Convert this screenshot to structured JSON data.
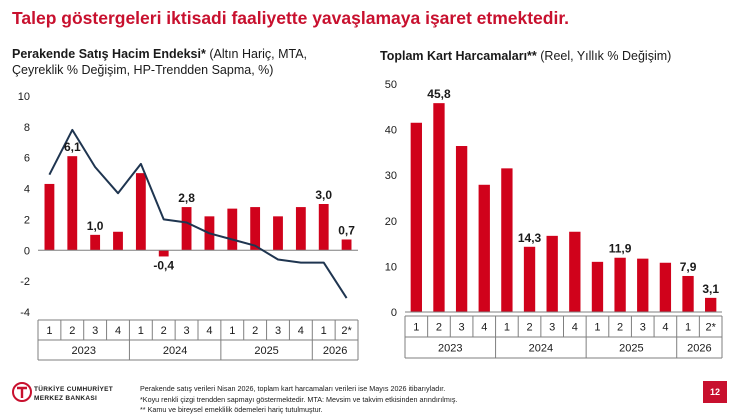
{
  "page": {
    "title": "Talep göstergeleri iktisadi faaliyette yavaşlamaya işaret etmektedir.",
    "page_number": "12",
    "brand": {
      "line1": "TÜRKİYE CUMHURİYET",
      "line2": "MERKEZ BANKASI",
      "color": "#c8102e"
    },
    "footnotes": [
      "Perakende satış verileri Nisan 2026, toplam kart harcamaları verileri ise Mayıs 2026 itibarıyladır.",
      "*Koyu renkli çizgi trendden sapmayı göstermektedir. MTA: Mevsim ve takvim etkisinden arındırılmış.",
      "** Kamu ve bireysel emeklilik ödemeleri hariç tutulmuştur."
    ]
  },
  "chart_data": [
    {
      "type": "bar",
      "title_bold": "Perakende Satış Hacim Endeksi*",
      "title_rest": " (Altın Hariç, MTA,",
      "subtitle": "Çeyreklik % Değişim, HP-Trendden Sapma, %)",
      "categories": [
        "1",
        "2",
        "3",
        "4",
        "1",
        "2",
        "3",
        "4",
        "1",
        "2",
        "3",
        "4",
        "1",
        "2*"
      ],
      "year_groups": [
        {
          "label": "2023",
          "count": 4
        },
        {
          "label": "2024",
          "count": 4
        },
        {
          "label": "2025",
          "count": 4
        },
        {
          "label": "2026",
          "count": 2
        }
      ],
      "ylim": [
        -4,
        10
      ],
      "yticks": [
        "-4",
        "-2",
        "0",
        "2",
        "4",
        "6",
        "8",
        "10"
      ],
      "series": [
        {
          "kind": "bar",
          "color": "#d0021b",
          "values": [
            4.3,
            6.1,
            1.0,
            1.2,
            5.0,
            -0.4,
            2.8,
            2.2,
            2.7,
            2.8,
            2.2,
            2.8,
            3.0,
            0.7
          ],
          "labels": [
            {
              "index": 1,
              "text": "6,1"
            },
            {
              "index": 2,
              "text": "1,0"
            },
            {
              "index": 5,
              "text": "-0,4"
            },
            {
              "index": 6,
              "text": "2,8"
            },
            {
              "index": 12,
              "text": "3,0"
            },
            {
              "index": 13,
              "text": "0,7"
            }
          ]
        },
        {
          "kind": "line",
          "color": "#1f3550",
          "values": [
            4.9,
            7.8,
            5.4,
            3.7,
            5.6,
            2.0,
            1.8,
            1.1,
            0.7,
            0.3,
            -0.6,
            -0.8,
            -0.8,
            -3.1
          ]
        }
      ]
    },
    {
      "type": "bar",
      "title_bold": "Toplam Kart Harcamaları**",
      "title_rest": " (Reel, Yıllık % Değişim)",
      "categories": [
        "1",
        "2",
        "3",
        "4",
        "1",
        "2",
        "3",
        "4",
        "1",
        "2",
        "3",
        "4",
        "1",
        "2*"
      ],
      "year_groups": [
        {
          "label": "2023",
          "count": 4
        },
        {
          "label": "2024",
          "count": 4
        },
        {
          "label": "2025",
          "count": 4
        },
        {
          "label": "2026",
          "count": 2
        }
      ],
      "ylim": [
        0,
        50
      ],
      "yticks": [
        "0",
        "10",
        "20",
        "30",
        "40",
        "50"
      ],
      "series": [
        {
          "kind": "bar",
          "color": "#d0021b",
          "values": [
            41.5,
            45.8,
            36.4,
            27.9,
            31.5,
            14.3,
            16.7,
            17.6,
            11.0,
            11.9,
            11.7,
            10.8,
            7.9,
            3.1
          ],
          "labels": [
            {
              "index": 1,
              "text": "45,8"
            },
            {
              "index": 5,
              "text": "14,3"
            },
            {
              "index": 9,
              "text": "11,9"
            },
            {
              "index": 12,
              "text": "7,9"
            },
            {
              "index": 13,
              "text": "3,1"
            }
          ]
        }
      ]
    }
  ]
}
